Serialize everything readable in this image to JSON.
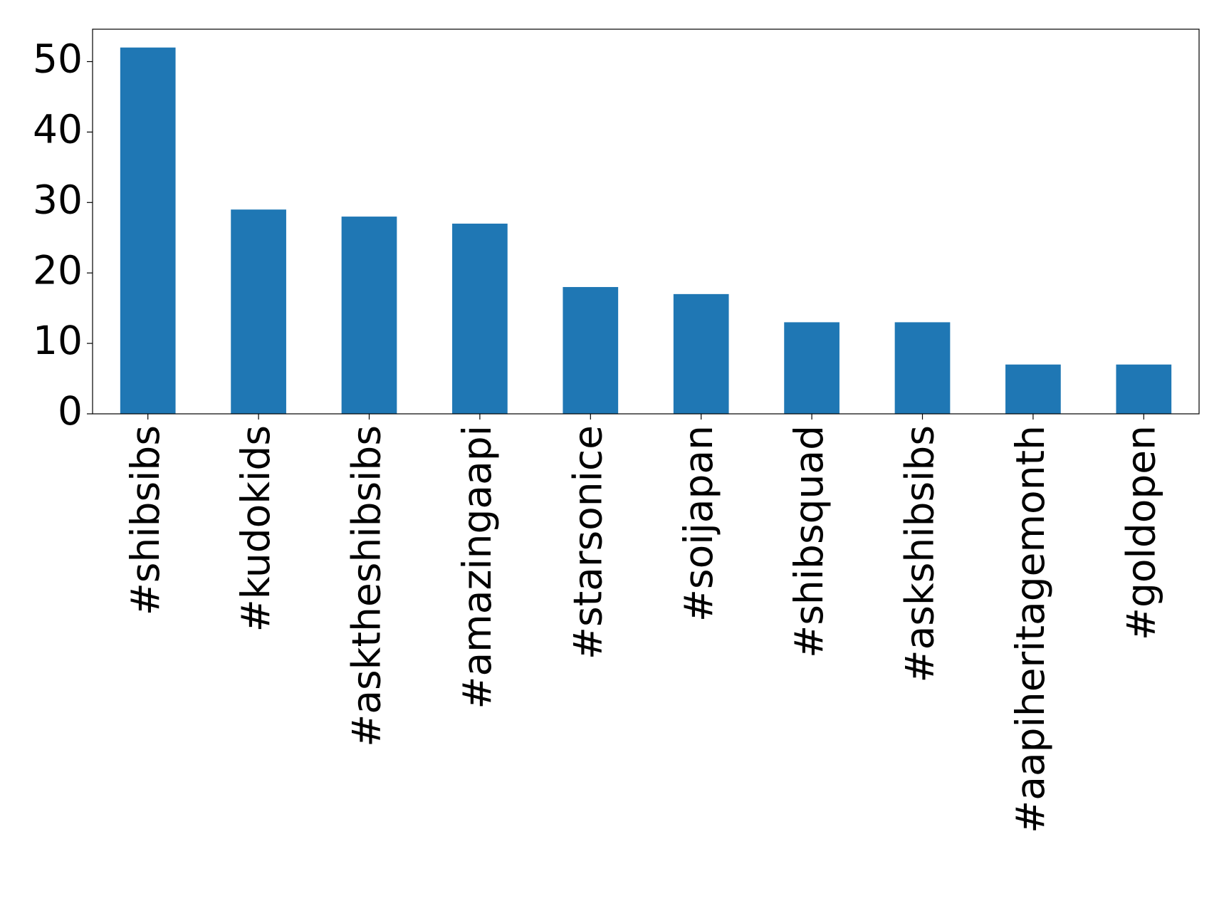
{
  "chart_data": {
    "type": "bar",
    "categories": [
      "#shibsibs",
      "#kudokids",
      "#asktheshibsibs",
      "#amazingaapi",
      "#starsonice",
      "#soijapan",
      "#shibsquad",
      "#askshibsibs",
      "#aapiheritagemonth",
      "#goldopen"
    ],
    "values": [
      52,
      29,
      28,
      27,
      18,
      17,
      13,
      13,
      7,
      7
    ],
    "color": "#1f77b4",
    "ylim": [
      0,
      54.6
    ],
    "yticks": [
      0,
      10,
      20,
      30,
      40,
      50
    ],
    "grid": false
  }
}
